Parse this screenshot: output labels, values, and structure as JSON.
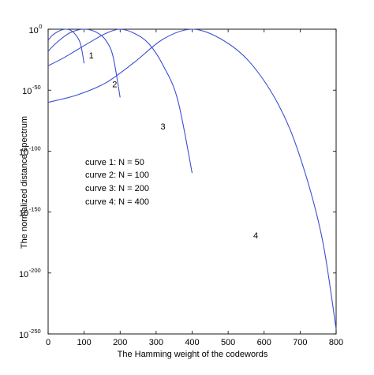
{
  "chart_data": {
    "type": "line",
    "title": "",
    "xlabel": "The Hamming weight of the codewords",
    "ylabel": "The normalized distance spectrum",
    "xlim": [
      0,
      800
    ],
    "ylim": [
      -250,
      0
    ],
    "yscale": "log",
    "grid": false,
    "x_ticks": [
      0,
      100,
      200,
      300,
      400,
      500,
      600,
      700,
      800
    ],
    "y_ticks": [
      {
        "base": "10",
        "exp": "0",
        "value": 0
      },
      {
        "base": "10",
        "exp": "-50",
        "value": -50
      },
      {
        "base": "10",
        "exp": "-100",
        "value": -100
      },
      {
        "base": "10",
        "exp": "-150",
        "value": -150
      },
      {
        "base": "10",
        "exp": "-200",
        "value": -200
      },
      {
        "base": "10",
        "exp": "-250",
        "value": -250
      }
    ],
    "legend_text": [
      "curve 1: N = 50",
      "curve 2: N = 100",
      "curve 3: N = 200",
      "curve 4: N = 400"
    ],
    "series": [
      {
        "name": "1",
        "N": 50,
        "x": [
          0,
          10,
          20,
          30,
          40,
          50,
          60,
          70,
          80,
          90,
          100
        ],
        "y": [
          -9,
          -5.5,
          -3.2,
          -1.5,
          -0.4,
          0,
          -0.5,
          -2.5,
          -6,
          -12,
          -28
        ]
      },
      {
        "name": "2",
        "N": 100,
        "x": [
          0,
          20,
          40,
          60,
          80,
          100,
          120,
          140,
          160,
          180,
          200
        ],
        "y": [
          -18,
          -12,
          -7,
          -3,
          -0.8,
          0,
          -0.8,
          -3.5,
          -9,
          -22,
          -56
        ]
      },
      {
        "name": "3",
        "N": 200,
        "x": [
          0,
          40,
          80,
          120,
          160,
          200,
          240,
          280,
          320,
          360,
          400
        ],
        "y": [
          -30,
          -24,
          -17,
          -10,
          -3.5,
          0,
          -3.5,
          -12,
          -30,
          -58,
          -118
        ]
      },
      {
        "name": "4",
        "N": 400,
        "x": [
          0,
          80,
          160,
          240,
          320,
          400,
          480,
          560,
          640,
          700,
          760,
          800
        ],
        "y": [
          -60,
          -54,
          -44,
          -27,
          -8,
          0,
          -8,
          -27,
          -62,
          -105,
          -170,
          -246
        ]
      }
    ]
  }
}
